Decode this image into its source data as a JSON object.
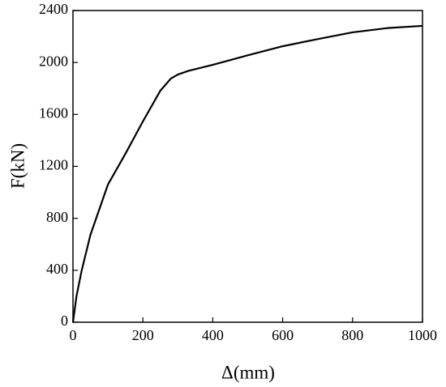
{
  "chart_data": {
    "type": "line",
    "x_label": "Δ(mm)",
    "y_label": "F(kN)",
    "x": [
      0,
      10,
      25,
      50,
      100,
      150,
      200,
      250,
      280,
      300,
      330,
      400,
      500,
      600,
      700,
      800,
      900,
      1000
    ],
    "series": [
      {
        "color": "#000000",
        "values": [
          0,
          200,
          400,
          673,
          1060,
          1297,
          1546,
          1783,
          1876,
          1907,
          1935,
          1982,
          2055,
          2125,
          2180,
          2232,
          2265,
          2282
        ]
      }
    ],
    "xlim": [
      0,
      1000
    ],
    "xticks": [
      0,
      200,
      400,
      600,
      800,
      1000
    ],
    "ylim": [
      0,
      2400
    ],
    "yticks": [
      0,
      400,
      800,
      1200,
      1600,
      2000,
      2400
    ]
  }
}
